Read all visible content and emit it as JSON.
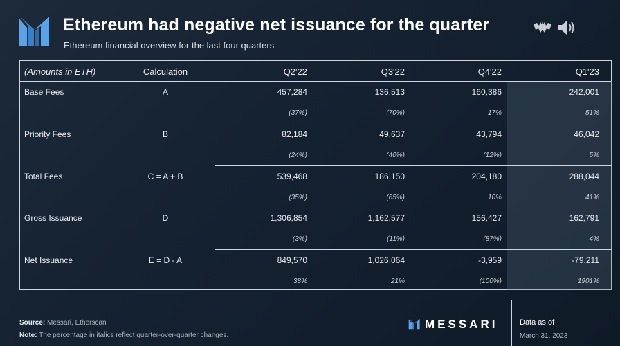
{
  "header": {
    "title": "Ethereum had negative net issuance for the quarter",
    "subtitle": "Ethereum financial overview for the last four quarters"
  },
  "colors": {
    "accent": "#4a90d9",
    "background": "#152231"
  },
  "table": {
    "columns": [
      "(Amounts in ETH)",
      "Calculation",
      "Q2'22",
      "Q3'22",
      "Q4'22",
      "Q1'23"
    ],
    "rows": [
      {
        "label": "Base Fees",
        "calc": "A",
        "values": [
          "457,284",
          "136,513",
          "160,386",
          "242,001"
        ],
        "pcts": [
          "(37%)",
          "(70%)",
          "17%",
          "51%"
        ]
      },
      {
        "label": "Priority Fees",
        "calc": "B",
        "values": [
          "82,184",
          "49,637",
          "43,794",
          "46,042"
        ],
        "pcts": [
          "(24%)",
          "(40%)",
          "(12%)",
          "5%"
        ]
      },
      {
        "label": "Total Fees",
        "calc": "C = A + B",
        "values": [
          "539,468",
          "186,150",
          "204,180",
          "288,044"
        ],
        "pcts": [
          "(35%)",
          "(65%)",
          "10%",
          "41%"
        ]
      },
      {
        "label": "Gross Issuance",
        "calc": "D",
        "values": [
          "1,306,854",
          "1,162,577",
          "156,427",
          "162,791"
        ],
        "pcts": [
          "(3%)",
          "(11%)",
          "(87%)",
          "4%"
        ]
      },
      {
        "label": "Net Issuance",
        "calc": "E = D - A",
        "values": [
          "849,570",
          "1,026,064",
          "-3,959",
          "-79,211"
        ],
        "pcts": [
          "38%",
          "21%",
          "(100%)",
          "1901%"
        ]
      }
    ]
  },
  "footer": {
    "source_label": "Source:",
    "source_text": "Messari, Etherscan",
    "note_label": "Note:",
    "note_text": "The percentage in italics reflect quarter-over-quarter changes.",
    "brand": "MESSARI",
    "data_as_of_label": "Data as of",
    "data_as_of_date": "March 31, 2023"
  }
}
